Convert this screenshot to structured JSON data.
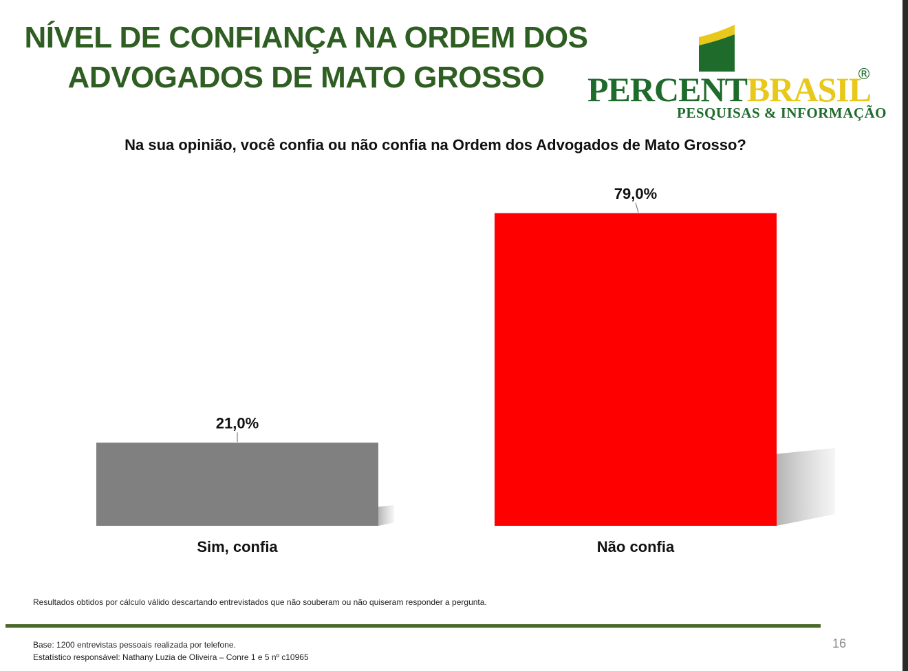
{
  "header": {
    "title_line1": "NÍVEL DE CONFIANÇA NA ORDEM DOS",
    "title_line2": "ADVOGADOS DE MATO GROSSO"
  },
  "logo": {
    "word_part1": "PERCENT",
    "word_part2": "BRASIL",
    "registered": "®",
    "subtitle": "PESQUISAS & INFORMAÇÃO",
    "colors": {
      "green": "#1e6b2c",
      "yellow": "#e8c81a"
    }
  },
  "chart_data": {
    "type": "bar",
    "title": "Na sua opinião, você confia ou não confia na Ordem dos Advogados de Mato Grosso?",
    "categories": [
      "Sim, confia",
      "Não confia"
    ],
    "values": [
      21.0,
      79.0
    ],
    "value_labels": [
      "21,0%",
      "79,0%"
    ],
    "colors": [
      "#808080",
      "#ff0000"
    ],
    "ylim": [
      0,
      100
    ],
    "grid": false,
    "legend": "none"
  },
  "footnote": "Resultados obtidos por cálculo válido descartando entrevistados que não souberam ou não quiseram responder a pergunta.",
  "footer": {
    "base": "Base: 1200 entrevistas pessoais realizada por telefone.",
    "statistician": "Estatístico responsável: Nathany Luzia de Oliveira – Conre 1 e 5 nº c10965",
    "page_number": "16"
  }
}
